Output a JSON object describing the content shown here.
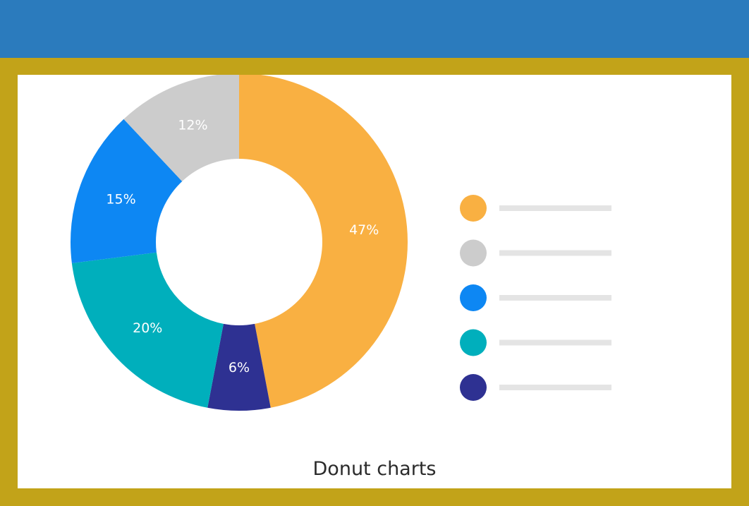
{
  "colors": {
    "header": "#2b7bbd",
    "frame": "#c2a319",
    "panel": "#ffffff",
    "legend_bar": "#e4e4e4"
  },
  "caption": "Donut charts",
  "chart_data": {
    "type": "pie",
    "donut": true,
    "title": "",
    "slices": [
      {
        "label": "47%",
        "value": 47,
        "color": "#f9b042"
      },
      {
        "label": "6%",
        "value": 6,
        "color": "#2e3192"
      },
      {
        "label": "20%",
        "value": 20,
        "color": "#00afbc"
      },
      {
        "label": "15%",
        "value": 15,
        "color": "#0d87f3"
      },
      {
        "label": "12%",
        "value": 12,
        "color": "#cccccc"
      }
    ],
    "legend": {
      "placement": "right",
      "entries": [
        {
          "color": "#f9b042"
        },
        {
          "color": "#cccccc"
        },
        {
          "color": "#0d87f3"
        },
        {
          "color": "#00afbc"
        },
        {
          "color": "#2e3192"
        }
      ]
    }
  }
}
